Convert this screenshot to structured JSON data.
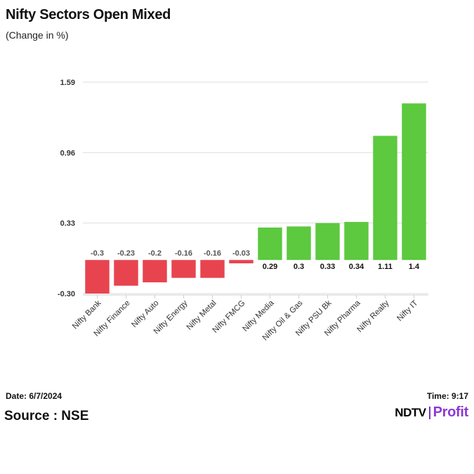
{
  "header": {
    "title": "Nifty Sectors Open Mixed",
    "subtitle": "(Change in %)"
  },
  "chart_data": {
    "type": "bar",
    "title": "Nifty Sectors Open Mixed",
    "ylabel": "(Change in %)",
    "xlabel": "",
    "categories": [
      "Nifty Bank",
      "Nifty Finance",
      "Nifty Auto",
      "Nifty Energy",
      "Nifty Metal",
      "Nifty FMCG",
      "Nifty Media",
      "Nifty Oil & Gas",
      "Nifty PSU Bk",
      "Nifty Pharma",
      "Nifty Realty",
      "Nifty IT"
    ],
    "values": [
      -0.3,
      -0.23,
      -0.2,
      -0.16,
      -0.16,
      -0.03,
      0.29,
      0.3,
      0.33,
      0.34,
      1.11,
      1.4
    ],
    "yticks": [
      "1.59",
      "0.96",
      "0.33",
      "-0.30"
    ],
    "ylim": [
      -0.3,
      1.59
    ],
    "grid": true,
    "colors": {
      "positive": "#5cc93f",
      "negative": "#e8444f"
    }
  },
  "footer": {
    "date": "Date: 6/7/2024",
    "time": "Time: 9:17",
    "source": "Source : NSE",
    "logo_left": "NDTV",
    "logo_right": "Profit"
  }
}
